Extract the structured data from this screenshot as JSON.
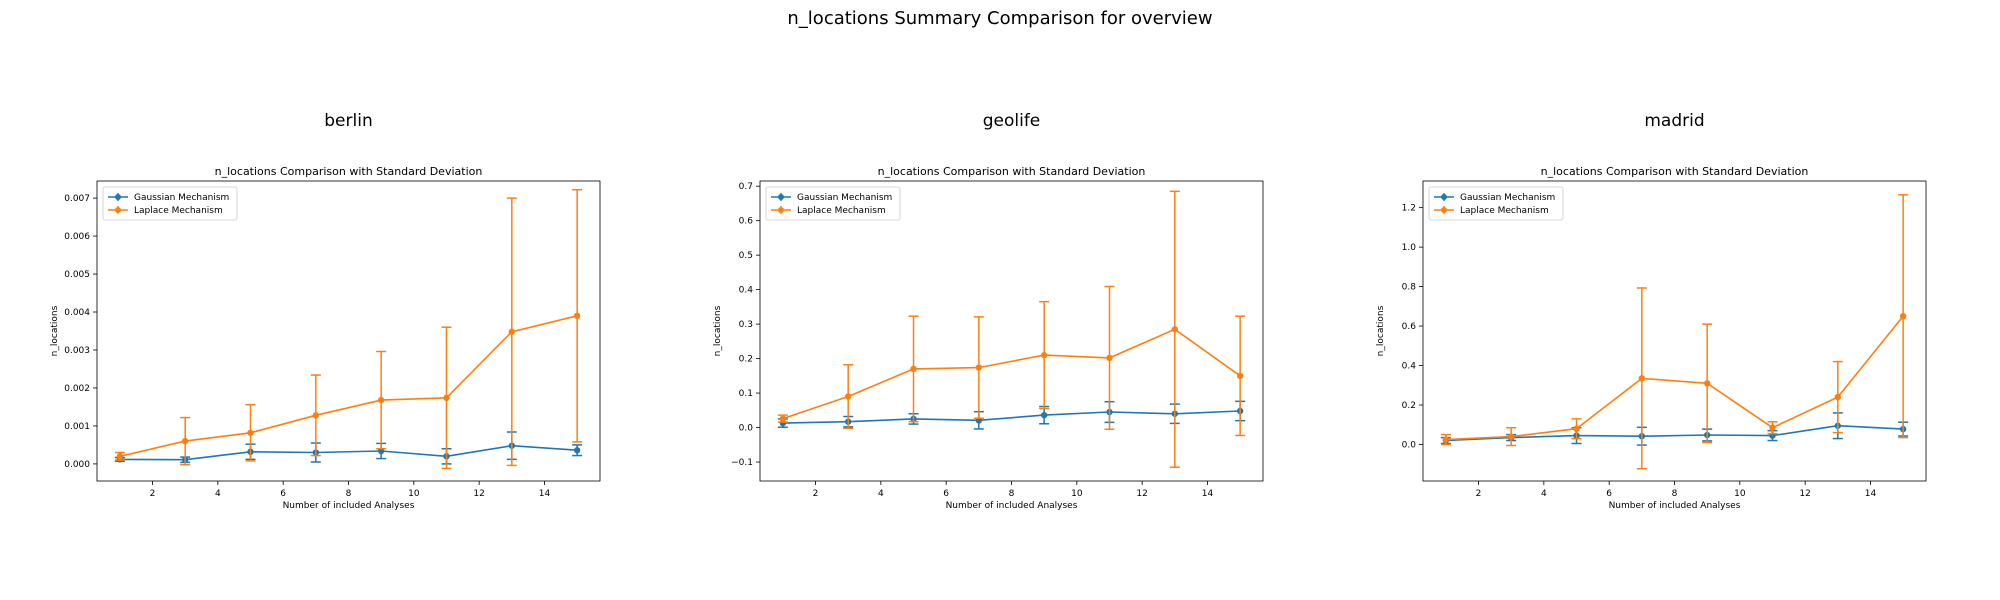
{
  "figure": {
    "suptitle": "n_locations Summary Comparison for overview"
  },
  "chart_data": [
    {
      "type": "line",
      "panel_title": "berlin",
      "title": "n_locations Comparison with Standard Deviation",
      "xlabel": "Number of included Analyses",
      "ylabel": "n_locations",
      "x": [
        1,
        3,
        5,
        7,
        9,
        11,
        13,
        15
      ],
      "xticks": [
        2,
        4,
        6,
        8,
        10,
        12,
        14
      ],
      "xlim": [
        0.3,
        15.7
      ],
      "ylim": [
        -0.00045,
        0.00745
      ],
      "yticks": [
        "0.000",
        "0.001",
        "0.002",
        "0.003",
        "0.004",
        "0.005",
        "0.006",
        "0.007"
      ],
      "yticks_values": [
        0,
        0.001,
        0.002,
        0.003,
        0.004,
        0.005,
        0.006,
        0.007
      ],
      "legend": "top-left",
      "grid": false,
      "series": [
        {
          "name": "Gaussian Mechanism",
          "color": "#1f77b4",
          "values": [
            0.00012,
            0.00011,
            0.00032,
            0.0003,
            0.00034,
            0.0002,
            0.00048,
            0.00036
          ],
          "err": [
            5e-05,
            7e-05,
            0.0002,
            0.00025,
            0.0002,
            0.0002,
            0.00036,
            0.00014
          ]
        },
        {
          "name": "Laplace Mechanism",
          "color": "#ff7f0e",
          "values": [
            0.0002,
            0.0006,
            0.00082,
            0.00128,
            0.00168,
            0.00174,
            0.00348,
            0.0039
          ],
          "err": [
            0.0001,
            0.00062,
            0.00074,
            0.00106,
            0.00128,
            0.00186,
            0.00352,
            0.00332
          ]
        }
      ]
    },
    {
      "type": "line",
      "panel_title": "geolife",
      "title": "n_locations Comparison with Standard Deviation",
      "xlabel": "Number of included Analyses",
      "ylabel": "n_locations",
      "x": [
        1,
        3,
        5,
        7,
        9,
        11,
        13,
        15
      ],
      "xticks": [
        2,
        4,
        6,
        8,
        10,
        12,
        14
      ],
      "xlim": [
        0.3,
        15.7
      ],
      "ylim": [
        -0.155,
        0.715
      ],
      "yticks": [
        "−0.1",
        "0.0",
        "0.1",
        "0.2",
        "0.3",
        "0.4",
        "0.5",
        "0.6",
        "0.7"
      ],
      "yticks_values": [
        -0.1,
        0,
        0.1,
        0.2,
        0.3,
        0.4,
        0.5,
        0.6,
        0.7
      ],
      "legend": "top-left",
      "grid": false,
      "series": [
        {
          "name": "Gaussian Mechanism",
          "color": "#1f77b4",
          "values": [
            0.013,
            0.017,
            0.025,
            0.021,
            0.036,
            0.045,
            0.04,
            0.048
          ],
          "err": [
            0.012,
            0.015,
            0.015,
            0.025,
            0.025,
            0.03,
            0.028,
            0.028
          ]
        },
        {
          "name": "Laplace Mechanism",
          "color": "#ff7f0e",
          "values": [
            0.026,
            0.09,
            0.17,
            0.174,
            0.21,
            0.202,
            0.285,
            0.15
          ],
          "err": [
            0.01,
            0.092,
            0.153,
            0.147,
            0.155,
            0.207,
            0.4,
            0.173
          ]
        }
      ]
    },
    {
      "type": "line",
      "panel_title": "madrid",
      "title": "n_locations Comparison with Standard Deviation",
      "xlabel": "Number of included Analyses",
      "ylabel": "n_locations",
      "x": [
        1,
        3,
        5,
        7,
        9,
        11,
        13,
        15
      ],
      "xticks": [
        2,
        4,
        6,
        8,
        10,
        12,
        14
      ],
      "xlim": [
        0.3,
        15.7
      ],
      "ylim": [
        -0.185,
        1.335
      ],
      "yticks": [
        "0.0",
        "0.2",
        "0.4",
        "0.6",
        "0.8",
        "1.0",
        "1.2"
      ],
      "yticks_values": [
        0,
        0.2,
        0.4,
        0.6,
        0.8,
        1.0,
        1.2
      ],
      "legend": "top-left",
      "grid": false,
      "series": [
        {
          "name": "Gaussian Mechanism",
          "color": "#1f77b4",
          "values": [
            0.02,
            0.035,
            0.045,
            0.042,
            0.048,
            0.045,
            0.095,
            0.078
          ],
          "err": [
            0.015,
            0.015,
            0.04,
            0.045,
            0.03,
            0.025,
            0.065,
            0.035
          ]
        },
        {
          "name": "Laplace Mechanism",
          "color": "#ff7f0e",
          "values": [
            0.025,
            0.04,
            0.08,
            0.335,
            0.31,
            0.085,
            0.24,
            0.65
          ],
          "err": [
            0.025,
            0.045,
            0.05,
            0.458,
            0.3,
            0.03,
            0.18,
            0.615
          ]
        }
      ]
    }
  ]
}
